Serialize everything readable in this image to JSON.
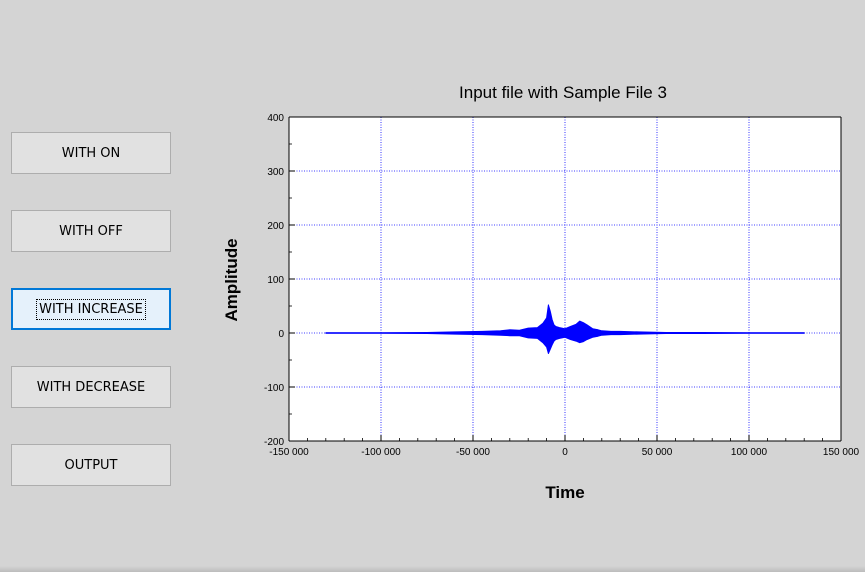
{
  "buttons": [
    {
      "label": "WITH ON",
      "focused": false
    },
    {
      "label": "WITH OFF",
      "focused": false
    },
    {
      "label": "WITH INCREASE",
      "focused": true
    },
    {
      "label": "WITH DECREASE",
      "focused": false
    },
    {
      "label": "OUTPUT",
      "focused": false
    }
  ],
  "chart_data": {
    "type": "line",
    "title": "Input file with Sample File 3",
    "xlabel": "Time",
    "ylabel": "Amplitude",
    "xlim": [
      -150000,
      150000
    ],
    "ylim": [
      -200,
      400
    ],
    "xticks": [
      -150000,
      -100000,
      -50000,
      0,
      50000,
      100000,
      150000
    ],
    "xtick_labels": [
      "-150 000",
      "-100 000",
      "-50 000",
      "0",
      "50 000",
      "100 000",
      "150 000"
    ],
    "yticks": [
      -200,
      -100,
      0,
      100,
      200,
      300,
      400
    ],
    "ytick_labels": [
      "-200",
      "-100",
      "0",
      "100",
      "200",
      "300",
      "400"
    ],
    "grid": true,
    "series_color": "#0000ff",
    "grid_color": "#0000ff",
    "series": [
      {
        "x": [
          -130000,
          -100000,
          -75000,
          -60000,
          -45000,
          -35000,
          -30000,
          -25000,
          -20000,
          -15000,
          -12000,
          -10000,
          -9000,
          -8000,
          -7000,
          -6000,
          -5000,
          -3000,
          0,
          3000,
          6000,
          8000,
          10000,
          12000,
          15000,
          18000,
          20000,
          25000,
          30000,
          40000,
          55000,
          75000,
          100000,
          130000
        ],
        "ymax": [
          0.5,
          0.5,
          1,
          2,
          3,
          4,
          6,
          5,
          9,
          10,
          18,
          28,
          52,
          40,
          25,
          15,
          12,
          10,
          8,
          12,
          16,
          22,
          19,
          15,
          8,
          6,
          4,
          3,
          3,
          2,
          1,
          1,
          0.5,
          0.5
        ],
        "ymin": [
          -0.5,
          -0.5,
          -1,
          -2,
          -3,
          -4,
          -5,
          -5,
          -9,
          -10,
          -18,
          -26,
          -38,
          -30,
          -22,
          -15,
          -12,
          -10,
          -8,
          -12,
          -15,
          -18,
          -16,
          -12,
          -8,
          -6,
          -4,
          -3,
          -3,
          -2,
          -1,
          -1,
          -0.5,
          -0.5
        ]
      }
    ]
  }
}
